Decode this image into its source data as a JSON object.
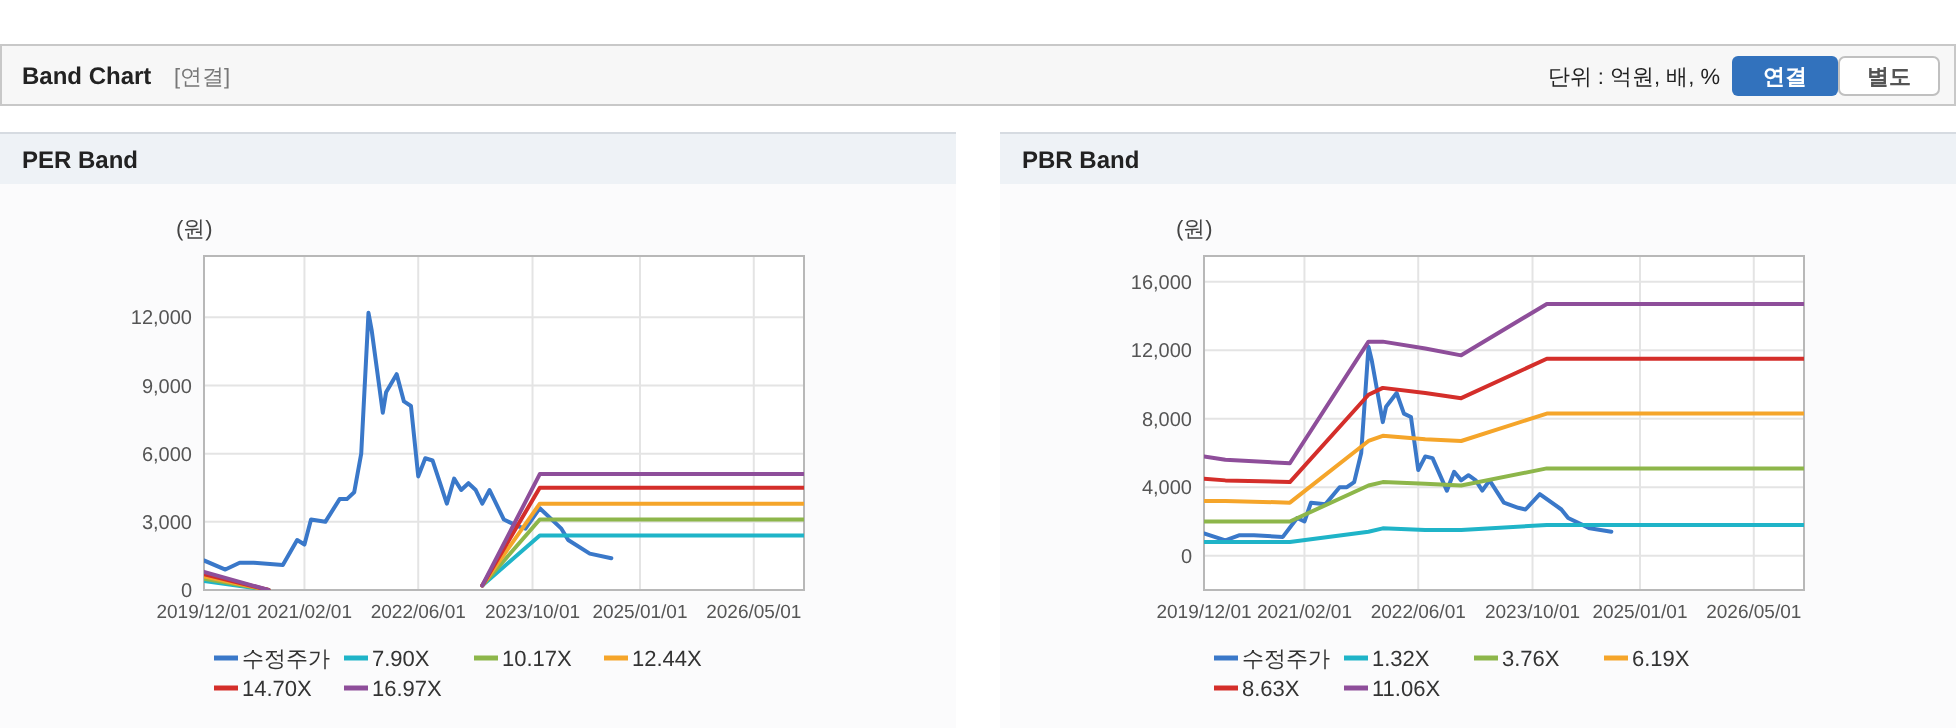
{
  "chart_data": [
    {
      "type": "other",
      "title": "Band Chart",
      "annotations": [
        "[연결]",
        "단위 : 억원, 배, %",
        "연결",
        "별도"
      ]
    },
    {
      "type": "line",
      "title": "PER Band",
      "ylabel": "(원)",
      "grid": true,
      "legend": "bottom",
      "line_style": "solid",
      "marker": "none",
      "x": [
        "2019-12-01",
        "2020-03-01",
        "2020-05-01",
        "2020-07-01",
        "2020-11-01",
        "2021-01-01",
        "2021-02-01",
        "2021-03-01",
        "2021-05-01",
        "2021-07-01",
        "2021-08-01",
        "2021-09-01",
        "2021-10-01",
        "2021-11-01",
        "2021-11-15",
        "2022-01-01",
        "2022-01-15",
        "2022-03-01",
        "2022-04-01",
        "2022-05-01",
        "2022-06-01",
        "2022-07-01",
        "2022-08-01",
        "2022-10-01",
        "2022-11-01",
        "2022-12-01",
        "2023-01-01",
        "2023-02-01",
        "2023-03-01",
        "2023-04-01",
        "2023-06-01",
        "2023-08-01",
        "2023-09-01",
        "2023-11-01",
        "2024-02-01",
        "2024-03-01",
        "2024-06-01",
        "2024-09-01"
      ],
      "xlim": [
        "2019-12-01",
        "2026-12-01"
      ],
      "xticks": [
        {
          "value": "2019-12-01",
          "label": "2019/12/01"
        },
        {
          "value": "2021-02-01",
          "label": "2021/02/01"
        },
        {
          "value": "2022-06-01",
          "label": "2022/06/01"
        },
        {
          "value": "2023-10-01",
          "label": "2023/10/01"
        },
        {
          "value": "2025-01-01",
          "label": "2025/01/01"
        },
        {
          "value": "2026-05-01",
          "label": "2026/05/01"
        }
      ],
      "ylim": [
        0,
        14700
      ],
      "yticks": [
        {
          "value": 0,
          "label": "0"
        },
        {
          "value": 3000,
          "label": "3,000"
        },
        {
          "value": 6000,
          "label": "6,000"
        },
        {
          "value": 9000,
          "label": "9,000"
        },
        {
          "value": 12000,
          "label": "12,000"
        }
      ],
      "series": [
        {
          "name": "수정주가",
          "color": "#3a78c9",
          "values": [
            1300,
            900,
            1200,
            1200,
            1100,
            2200,
            2000,
            3100,
            3000,
            4000,
            4000,
            4300,
            6000,
            12200,
            11400,
            7800,
            8700,
            9500,
            8300,
            8100,
            5000,
            5800,
            5700,
            3800,
            4900,
            4400,
            4700,
            4400,
            3800,
            4400,
            3100,
            2800,
            2700,
            3600,
            2700,
            2200,
            1600,
            1400
          ]
        },
        {
          "name": "7.90X",
          "color": "#1fb4c8",
          "x": [
            "2019-12-01",
            "2020-09-01"
          ],
          "values": [
            400,
            0
          ]
        },
        {
          "name": "10.17X",
          "color": "#8db64a",
          "x": [
            "2019-12-01",
            "2020-09-01"
          ],
          "values": [
            500,
            0
          ]
        },
        {
          "name": "12.44X",
          "color": "#f5a52a",
          "x": [
            "2019-12-01",
            "2020-09-01"
          ],
          "values": [
            600,
            0
          ]
        },
        {
          "name": "14.70X",
          "color": "#d42e2a",
          "x": [
            "2019-12-01",
            "2020-09-01"
          ],
          "values": [
            700,
            0
          ]
        },
        {
          "name": "16.97X",
          "color": "#8e4e9a",
          "x": [
            "2019-12-01",
            "2020-09-01"
          ],
          "values": [
            800,
            0
          ]
        },
        {
          "color": "#1fb4c8",
          "x": [
            "2023-03-01",
            "2023-11-01",
            "2026-12-01"
          ],
          "values": [
            200,
            2400,
            2400
          ]
        },
        {
          "color": "#8db64a",
          "x": [
            "2023-03-01",
            "2023-11-01",
            "2026-12-01"
          ],
          "values": [
            200,
            3100,
            3100
          ]
        },
        {
          "color": "#f5a52a",
          "x": [
            "2023-03-01",
            "2023-11-01",
            "2026-12-01"
          ],
          "values": [
            200,
            3800,
            3800
          ]
        },
        {
          "color": "#d42e2a",
          "x": [
            "2023-03-01",
            "2023-11-01",
            "2026-12-01"
          ],
          "values": [
            200,
            4500,
            4500
          ]
        },
        {
          "color": "#8e4e9a",
          "x": [
            "2023-03-01",
            "2023-11-01",
            "2026-12-01"
          ],
          "values": [
            200,
            5100,
            5100
          ]
        }
      ]
    },
    {
      "type": "line",
      "title": "PBR Band",
      "ylabel": "(원)",
      "grid": true,
      "legend": "bottom",
      "line_style": "solid",
      "marker": "none",
      "x": [
        "2019-12-01",
        "2020-03-01",
        "2020-05-01",
        "2020-07-01",
        "2020-11-01",
        "2021-01-01",
        "2021-02-01",
        "2021-03-01",
        "2021-05-01",
        "2021-07-01",
        "2021-08-01",
        "2021-09-01",
        "2021-10-01",
        "2021-11-01",
        "2021-11-15",
        "2022-01-01",
        "2022-01-15",
        "2022-03-01",
        "2022-04-01",
        "2022-05-01",
        "2022-06-01",
        "2022-07-01",
        "2022-08-01",
        "2022-10-01",
        "2022-11-01",
        "2022-12-01",
        "2023-01-01",
        "2023-02-01",
        "2023-03-01",
        "2023-04-01",
        "2023-06-01",
        "2023-08-01",
        "2023-09-01",
        "2023-11-01",
        "2024-02-01",
        "2024-03-01",
        "2024-06-01",
        "2024-09-01"
      ],
      "xlim": [
        "2019-12-01",
        "2026-12-01"
      ],
      "xticks": [
        {
          "value": "2019-12-01",
          "label": "2019/12/01"
        },
        {
          "value": "2021-02-01",
          "label": "2021/02/01"
        },
        {
          "value": "2022-06-01",
          "label": "2022/06/01"
        },
        {
          "value": "2023-10-01",
          "label": "2023/10/01"
        },
        {
          "value": "2025-01-01",
          "label": "2025/01/01"
        },
        {
          "value": "2026-05-01",
          "label": "2026/05/01"
        }
      ],
      "ylim": [
        -2000,
        17500
      ],
      "yticks": [
        {
          "value": 0,
          "label": "0"
        },
        {
          "value": 4000,
          "label": "4,000"
        },
        {
          "value": 8000,
          "label": "8,000"
        },
        {
          "value": 12000,
          "label": "12,000"
        },
        {
          "value": 16000,
          "label": "16,000"
        }
      ],
      "series": [
        {
          "name": "수정주가",
          "color": "#3a78c9",
          "values": [
            1300,
            900,
            1200,
            1200,
            1100,
            2200,
            2000,
            3100,
            3000,
            4000,
            4000,
            4300,
            6000,
            12200,
            11400,
            7800,
            8700,
            9500,
            8300,
            8100,
            5000,
            5800,
            5700,
            3800,
            4900,
            4400,
            4700,
            4400,
            3800,
            4400,
            3100,
            2800,
            2700,
            3600,
            2700,
            2200,
            1600,
            1400
          ]
        },
        {
          "name": "1.32X",
          "color": "#1fb4c8",
          "x": [
            "2019-12-01",
            "2020-03-01",
            "2020-12-01",
            "2021-11-01",
            "2022-01-01",
            "2022-07-01",
            "2022-12-01",
            "2023-12-01",
            "2026-12-01"
          ],
          "values": [
            800,
            800,
            800,
            1400,
            1600,
            1500,
            1500,
            1800,
            1800
          ]
        },
        {
          "name": "3.76X",
          "color": "#8db64a",
          "x": [
            "2019-12-01",
            "2020-03-01",
            "2020-12-01",
            "2021-11-01",
            "2022-01-01",
            "2022-07-01",
            "2022-12-01",
            "2023-12-01",
            "2026-12-01"
          ],
          "values": [
            2000,
            2000,
            2000,
            4100,
            4300,
            4200,
            4100,
            5100,
            5100
          ]
        },
        {
          "name": "6.19X",
          "color": "#f5a52a",
          "x": [
            "2019-12-01",
            "2020-03-01",
            "2020-12-01",
            "2021-11-01",
            "2022-01-01",
            "2022-07-01",
            "2022-12-01",
            "2023-12-01",
            "2026-12-01"
          ],
          "values": [
            3200,
            3200,
            3100,
            6700,
            7000,
            6800,
            6700,
            8300,
            8300
          ]
        },
        {
          "name": "8.63X",
          "color": "#d42e2a",
          "x": [
            "2019-12-01",
            "2020-03-01",
            "2020-12-01",
            "2021-11-01",
            "2022-01-01",
            "2022-07-01",
            "2022-12-01",
            "2023-12-01",
            "2026-12-01"
          ],
          "values": [
            4500,
            4400,
            4300,
            9400,
            9800,
            9500,
            9200,
            11500,
            11500
          ]
        },
        {
          "name": "11.06X",
          "color": "#8e4e9a",
          "x": [
            "2019-12-01",
            "2020-03-01",
            "2020-12-01",
            "2021-11-01",
            "2022-01-01",
            "2022-07-01",
            "2022-12-01",
            "2023-12-01",
            "2026-12-01"
          ],
          "values": [
            5800,
            5600,
            5400,
            12500,
            12500,
            12100,
            11700,
            14700,
            14700
          ]
        }
      ]
    }
  ]
}
